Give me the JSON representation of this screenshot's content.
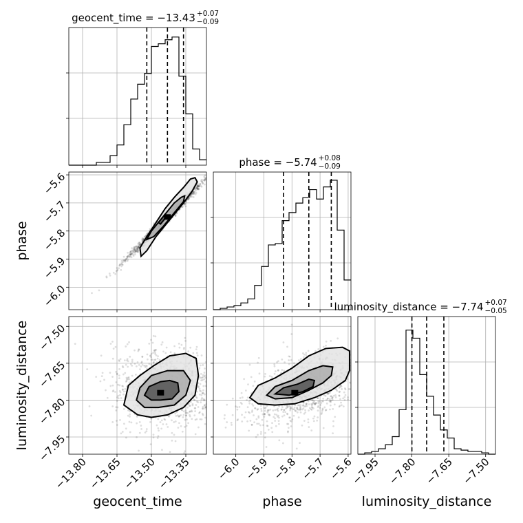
{
  "chart_data": {
    "type": "corner",
    "parameters": [
      {
        "name": "geocent_time",
        "xlabel": "geocent_time",
        "range": [
          -13.86,
          -13.26
        ],
        "ticks": [
          -13.8,
          -13.65,
          -13.5,
          -13.35
        ],
        "tick_labels": [
          "−13.80",
          "−13.65",
          "−13.50",
          "−13.35"
        ],
        "title_main": "geocent_time = −13.43",
        "title_sup": "+0.07",
        "title_sub": "−0.09",
        "quantiles": [
          -13.52,
          -13.43,
          -13.36
        ],
        "hist_heights": [
          0,
          0,
          0,
          0,
          0.02,
          0.02,
          0.07,
          0.15,
          0.3,
          0.49,
          0.6,
          0.68,
          0.88,
          0.9,
          0.93,
          0.95,
          0.66,
          0.38,
          0.12,
          0.04
        ]
      },
      {
        "name": "phase",
        "ylabel": "phase",
        "xlabel": "phase",
        "range": [
          -6.08,
          -5.59
        ],
        "ticks": [
          -6.0,
          -5.9,
          -5.8,
          -5.7,
          -5.6
        ],
        "tick_labels": [
          "−6.0",
          "−5.9",
          "−5.8",
          "−5.7",
          "−5.6"
        ],
        "title_main": "phase = −5.74",
        "title_sup": "+0.08",
        "title_sub": "−0.09",
        "quantiles": [
          -5.83,
          -5.74,
          -5.66
        ],
        "hist_heights": [
          0,
          0.01,
          0.02,
          0.03,
          0.05,
          0.08,
          0.18,
          0.32,
          0.48,
          0.49,
          0.66,
          0.72,
          0.79,
          0.83,
          0.89,
          0.82,
          0.91,
          0.96,
          0.59,
          0.22
        ]
      },
      {
        "name": "luminosity_distance",
        "ylabel": "luminosity_distance",
        "xlabel": "luminosity_distance",
        "range": [
          -8.02,
          -7.46
        ],
        "ticks": [
          -7.95,
          -7.8,
          -7.65,
          -7.5
        ],
        "tick_labels": [
          "−7.95",
          "−7.80",
          "−7.65",
          "−7.50"
        ],
        "title_main": "luminosity_distance = −7.74",
        "title_sup": "+0.07",
        "title_sub": "−0.05",
        "quantiles": [
          -7.8,
          -7.74,
          -7.67
        ],
        "hist_heights": [
          0,
          0.01,
          0.02,
          0.04,
          0.07,
          0.13,
          0.33,
          0.92,
          0.86,
          0.59,
          0.43,
          0.29,
          0.18,
          0.12,
          0.04,
          0.03,
          0.02,
          0.02,
          0.01,
          0
        ]
      }
    ],
    "pairs": [
      {
        "x": "geocent_time",
        "y": "phase",
        "center": [
          -13.43,
          -5.75
        ],
        "sample_center": [
          -13.44,
          -5.76
        ],
        "sample_sd_major": 0.085,
        "sample_sd_minor": 0.006,
        "slope": 0.82,
        "contours": [
          [
            [
              -13.545,
              -5.89
            ],
            [
              -13.55,
              -5.86
            ],
            [
              -13.52,
              -5.82
            ],
            [
              -13.48,
              -5.77
            ],
            [
              -13.44,
              -5.72
            ],
            [
              -13.4,
              -5.68
            ],
            [
              -13.36,
              -5.645
            ],
            [
              -13.33,
              -5.615
            ],
            [
              -13.31,
              -5.61
            ],
            [
              -13.3,
              -5.625
            ],
            [
              -13.32,
              -5.655
            ],
            [
              -13.36,
              -5.7
            ],
            [
              -13.4,
              -5.74
            ],
            [
              -13.44,
              -5.78
            ],
            [
              -13.48,
              -5.82
            ],
            [
              -13.52,
              -5.87
            ]
          ],
          [
            [
              -13.52,
              -5.83
            ],
            [
              -13.5,
              -5.8
            ],
            [
              -13.46,
              -5.76
            ],
            [
              -13.43,
              -5.73
            ],
            [
              -13.4,
              -5.7
            ],
            [
              -13.37,
              -5.68
            ],
            [
              -13.355,
              -5.675
            ],
            [
              -13.36,
              -5.695
            ],
            [
              -13.39,
              -5.725
            ],
            [
              -13.42,
              -5.755
            ],
            [
              -13.45,
              -5.785
            ],
            [
              -13.49,
              -5.82
            ]
          ],
          [
            [
              -13.47,
              -5.77
            ],
            [
              -13.455,
              -5.755
            ],
            [
              -13.44,
              -5.74
            ],
            [
              -13.435,
              -5.745
            ],
            [
              -13.445,
              -5.76
            ],
            [
              -13.46,
              -5.775
            ]
          ]
        ]
      },
      {
        "x": "geocent_time",
        "y": "luminosity_distance",
        "center": [
          -13.46,
          -7.77
        ],
        "sample_center": [
          -13.43,
          -7.75
        ],
        "sample_sd_major": 0.14,
        "sample_sd_minor": 0.085,
        "slope": 0,
        "contours": [
          [
            [
              -13.62,
              -7.82
            ],
            [
              -13.6,
              -7.74
            ],
            [
              -13.55,
              -7.7
            ],
            [
              -13.49,
              -7.66
            ],
            [
              -13.42,
              -7.62
            ],
            [
              -13.35,
              -7.61
            ],
            [
              -13.305,
              -7.63
            ],
            [
              -13.295,
              -7.7
            ],
            [
              -13.31,
              -7.78
            ],
            [
              -13.36,
              -7.83
            ],
            [
              -13.43,
              -7.86
            ],
            [
              -13.5,
              -7.87
            ],
            [
              -13.56,
              -7.86
            ]
          ],
          [
            [
              -13.565,
              -7.8
            ],
            [
              -13.55,
              -7.75
            ],
            [
              -13.5,
              -7.7
            ],
            [
              -13.43,
              -7.68
            ],
            [
              -13.36,
              -7.68
            ],
            [
              -13.33,
              -7.72
            ],
            [
              -13.35,
              -7.78
            ],
            [
              -13.4,
              -7.82
            ],
            [
              -13.47,
              -7.83
            ],
            [
              -13.53,
              -7.83
            ]
          ],
          [
            [
              -13.53,
              -7.78
            ],
            [
              -13.51,
              -7.745
            ],
            [
              -13.46,
              -7.725
            ],
            [
              -13.42,
              -7.72
            ],
            [
              -13.385,
              -7.73
            ],
            [
              -13.38,
              -7.765
            ],
            [
              -13.41,
              -7.795
            ],
            [
              -13.46,
              -7.8
            ],
            [
              -13.5,
              -7.8
            ]
          ]
        ]
      },
      {
        "x": "phase",
        "y": "luminosity_distance",
        "center": [
          -5.79,
          -7.77
        ],
        "sample_center": [
          -5.76,
          -7.76
        ],
        "sample_sd_major": 0.1,
        "sample_sd_minor": 0.055,
        "slope": 0.6,
        "contours": [
          [
            [
              -5.95,
              -7.79
            ],
            [
              -5.92,
              -7.74
            ],
            [
              -5.86,
              -7.71
            ],
            [
              -5.8,
              -7.67
            ],
            [
              -5.74,
              -7.62
            ],
            [
              -5.68,
              -7.59
            ],
            [
              -5.62,
              -7.585
            ],
            [
              -5.595,
              -7.6
            ],
            [
              -5.595,
              -7.68
            ],
            [
              -5.61,
              -7.72
            ],
            [
              -5.66,
              -7.76
            ],
            [
              -5.72,
              -7.79
            ],
            [
              -5.79,
              -7.815
            ],
            [
              -5.86,
              -7.82
            ],
            [
              -5.92,
              -7.815
            ]
          ],
          [
            [
              -5.89,
              -7.78
            ],
            [
              -5.86,
              -7.745
            ],
            [
              -5.8,
              -7.72
            ],
            [
              -5.74,
              -7.68
            ],
            [
              -5.69,
              -7.66
            ],
            [
              -5.655,
              -7.665
            ],
            [
              -5.66,
              -7.7
            ],
            [
              -5.69,
              -7.73
            ],
            [
              -5.74,
              -7.76
            ],
            [
              -5.8,
              -7.79
            ],
            [
              -5.86,
              -7.795
            ]
          ],
          [
            [
              -5.86,
              -7.775
            ],
            [
              -5.83,
              -7.75
            ],
            [
              -5.78,
              -7.735
            ],
            [
              -5.74,
              -7.715
            ],
            [
              -5.72,
              -7.72
            ],
            [
              -5.725,
              -7.745
            ],
            [
              -5.76,
              -7.765
            ],
            [
              -5.81,
              -7.78
            ]
          ]
        ]
      }
    ],
    "grid": true
  }
}
